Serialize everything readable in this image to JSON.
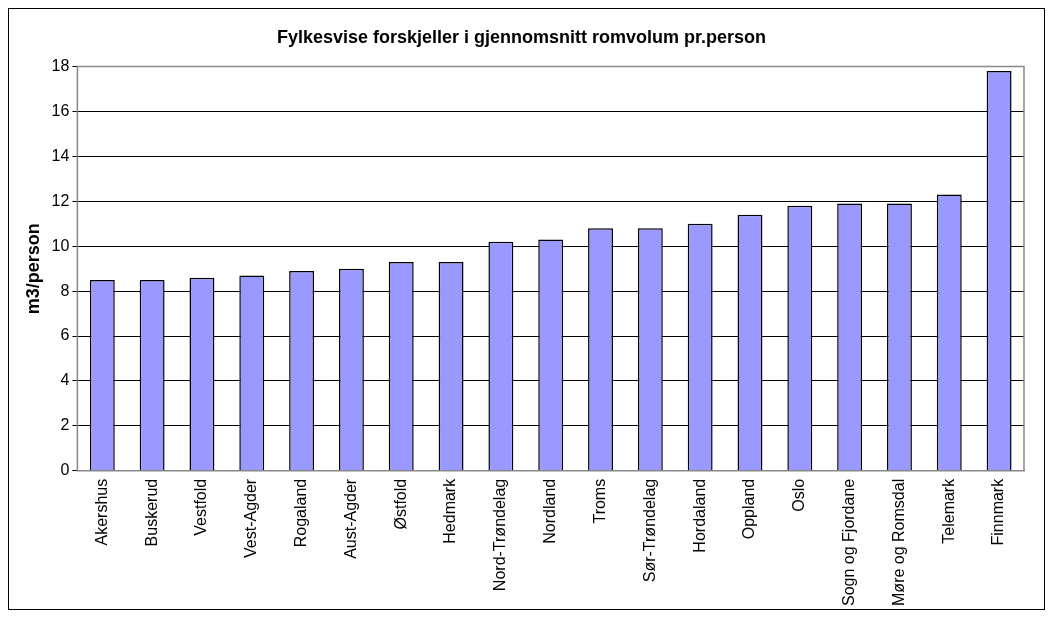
{
  "chart_data": {
    "type": "bar",
    "title": "Fylkesvise forskjeller i gjennomsnitt romvolum pr.person",
    "ylabel": "m3/person",
    "categories": [
      "Akershus",
      "Buskerud",
      "Vestfold",
      "Vest-Agder",
      "Rogaland",
      "Aust-Agder",
      "Østfold",
      "Hedmark",
      "Nord-Trøndelag",
      "Nordland",
      "Troms",
      "Sør-Trøndelag",
      "Hordaland",
      "Oppland",
      "Oslo",
      "Sogn og Fjordane",
      "Møre og Romsdal",
      "Telemark",
      "Finnmark"
    ],
    "values": [
      8.5,
      8.5,
      8.6,
      8.7,
      8.9,
      9.0,
      9.3,
      9.3,
      10.2,
      10.3,
      10.8,
      10.8,
      11.0,
      11.4,
      11.8,
      11.9,
      11.9,
      12.3,
      17.8
    ],
    "color": "#9999ff",
    "ylim": [
      0,
      18
    ],
    "yticks": [
      0,
      2,
      4,
      6,
      8,
      10,
      12,
      14,
      16,
      18
    ],
    "grid": "y",
    "legend": false
  }
}
